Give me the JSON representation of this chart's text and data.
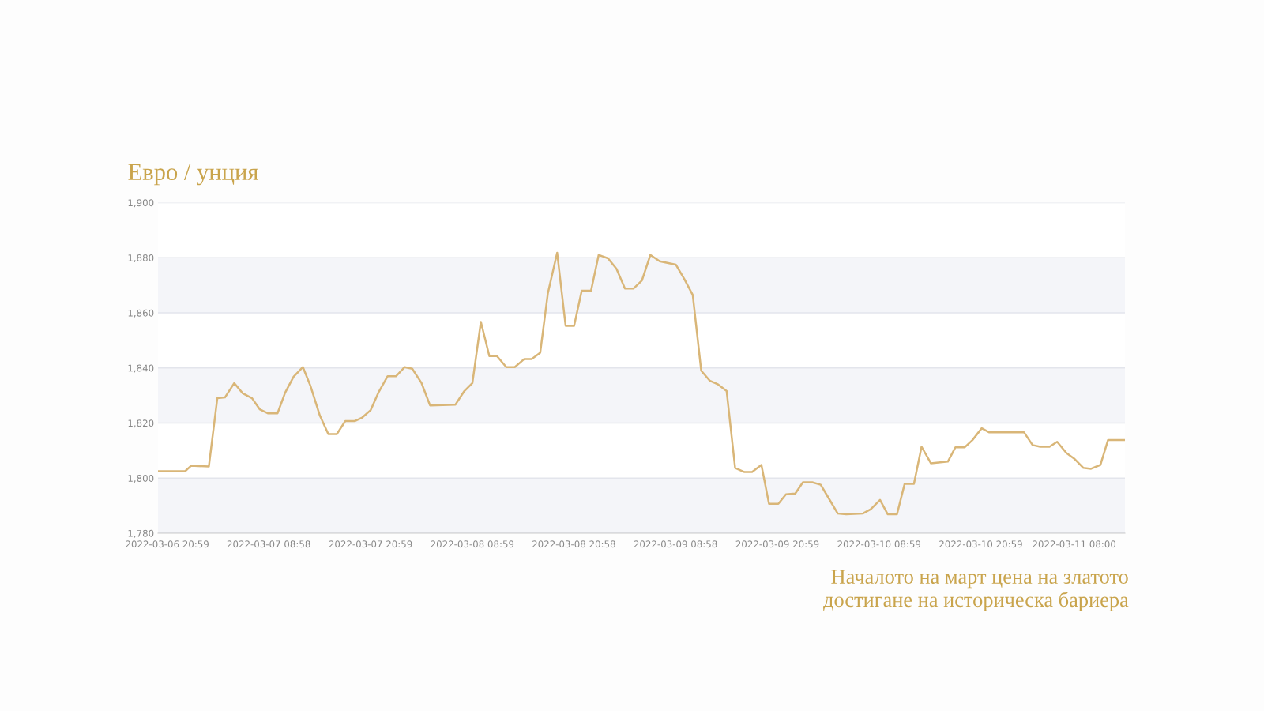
{
  "chart_data": {
    "type": "line",
    "title": "Евро / унция",
    "annotations": [
      "Началото на март цена на златото\nдостигане на историческа бариера"
    ],
    "x": [
      "2022-03-06T19:54",
      "2022-03-06T23:06",
      "2022-03-06T23:48",
      "2022-03-07T01:54",
      "2022-03-07T02:54",
      "2022-03-07T03:48",
      "2022-03-07T04:54",
      "2022-03-07T05:54",
      "2022-03-07T07:00",
      "2022-03-07T07:54",
      "2022-03-07T08:54",
      "2022-03-07T10:00",
      "2022-03-07T10:54",
      "2022-03-07T11:54",
      "2022-03-07T13:00",
      "2022-03-07T13:54",
      "2022-03-07T15:00",
      "2022-03-07T16:00",
      "2022-03-07T17:00",
      "2022-03-07T18:00",
      "2022-03-07T19:06",
      "2022-03-07T20:00",
      "2022-03-07T21:00",
      "2022-03-07T21:54",
      "2022-03-07T23:00",
      "2022-03-08T00:00",
      "2022-03-08T01:00",
      "2022-03-08T01:54",
      "2022-03-08T03:00",
      "2022-03-08T04:00",
      "2022-03-08T07:00",
      "2022-03-08T08:00",
      "2022-03-08T09:00",
      "2022-03-08T10:00",
      "2022-03-08T11:00",
      "2022-03-08T11:54",
      "2022-03-08T13:00",
      "2022-03-08T14:00",
      "2022-03-08T15:06",
      "2022-03-08T16:00",
      "2022-03-08T17:00",
      "2022-03-08T17:54",
      "2022-03-08T19:00",
      "2022-03-08T20:00",
      "2022-03-08T21:00",
      "2022-03-08T21:54",
      "2022-03-08T23:00",
      "2022-03-08T23:54",
      "2022-03-09T01:00",
      "2022-03-09T02:00",
      "2022-03-09T03:00",
      "2022-03-09T04:00",
      "2022-03-09T05:00",
      "2022-03-09T06:00",
      "2022-03-09T07:06",
      "2022-03-09T09:00",
      "2022-03-09T10:00",
      "2022-03-09T11:00",
      "2022-03-09T12:00",
      "2022-03-09T13:00",
      "2022-03-09T14:00",
      "2022-03-09T15:00",
      "2022-03-09T16:00",
      "2022-03-09T17:06",
      "2022-03-09T18:00",
      "2022-03-09T19:06",
      "2022-03-09T20:00",
      "2022-03-09T21:06",
      "2022-03-09T22:00",
      "2022-03-09T23:06",
      "2022-03-10T00:00",
      "2022-03-10T01:06",
      "2022-03-10T02:06",
      "2022-03-10T03:06",
      "2022-03-10T04:06",
      "2022-03-10T05:06",
      "2022-03-10T07:06",
      "2022-03-10T08:00",
      "2022-03-10T09:06",
      "2022-03-10T10:00",
      "2022-03-10T11:06",
      "2022-03-10T12:00",
      "2022-03-10T13:06",
      "2022-03-10T14:00",
      "2022-03-10T15:06",
      "2022-03-10T17:06",
      "2022-03-10T18:00",
      "2022-03-10T19:06",
      "2022-03-10T20:00",
      "2022-03-10T21:06",
      "2022-03-10T22:00",
      "2022-03-11T02:06",
      "2022-03-11T03:06",
      "2022-03-11T04:00",
      "2022-03-11T05:06",
      "2022-03-11T06:00",
      "2022-03-11T07:06",
      "2022-03-11T08:00",
      "2022-03-11T09:06",
      "2022-03-11T10:00",
      "2022-03-11T11:06",
      "2022-03-11T12:00",
      "2022-03-11T14:00"
    ],
    "series": [
      {
        "color": "#d9b678",
        "values": [
          1802.5,
          1802.5,
          1804.5,
          1804.2,
          1829,
          1829.3,
          1834.5,
          1830.8,
          1829,
          1825,
          1823.5,
          1823.5,
          1831,
          1836.8,
          1840.3,
          1833.4,
          1822.7,
          1816,
          1816,
          1820.7,
          1820.7,
          1822,
          1824.7,
          1831,
          1837,
          1837,
          1840.3,
          1839.7,
          1834.5,
          1826.4,
          1826.7,
          1831.4,
          1834.5,
          1856.7,
          1844.3,
          1844.3,
          1840.3,
          1840.3,
          1843.2,
          1843.2,
          1845.5,
          1867,
          1881.8,
          1855.3,
          1855.3,
          1868,
          1868,
          1881,
          1879.8,
          1876,
          1868.8,
          1868.8,
          1871.7,
          1881,
          1878.7,
          1877.5,
          1872.3,
          1866.5,
          1839,
          1835.4,
          1834,
          1831.6,
          1803.7,
          1802.2,
          1802.2,
          1804.8,
          1790.7,
          1790.7,
          1794.1,
          1794.4,
          1798.5,
          1798.5,
          1797.6,
          1792.4,
          1787.2,
          1786.9,
          1787.2,
          1788.7,
          1792.1,
          1786.9,
          1786.9,
          1797.9,
          1797.9,
          1811.4,
          1805.4,
          1806,
          1811.2,
          1811.2,
          1813.8,
          1818.1,
          1816.6,
          1816.6,
          1812,
          1811.4,
          1811.4,
          1813.2,
          1809.1,
          1807.1,
          1803.7,
          1803.4,
          1804.8,
          1813.8,
          1813.8
        ]
      }
    ],
    "xlim": [
      "2022-03-06T19:54",
      "2022-03-11T14:00"
    ],
    "xticks": [
      {
        "value": "2022-03-06T20:59",
        "label": "2022-03-06 20:59"
      },
      {
        "value": "2022-03-07T08:58",
        "label": "2022-03-07 08:58"
      },
      {
        "value": "2022-03-07T20:59",
        "label": "2022-03-07 20:59"
      },
      {
        "value": "2022-03-08T08:59",
        "label": "2022-03-08 08:59"
      },
      {
        "value": "2022-03-08T20:58",
        "label": "2022-03-08 20:58"
      },
      {
        "value": "2022-03-09T08:58",
        "label": "2022-03-09 08:58"
      },
      {
        "value": "2022-03-09T20:59",
        "label": "2022-03-09 20:59"
      },
      {
        "value": "2022-03-10T08:59",
        "label": "2022-03-10 08:59"
      },
      {
        "value": "2022-03-10T20:59",
        "label": "2022-03-10 20:59"
      },
      {
        "value": "2022-03-11T08:00",
        "label": "2022-03-11 08:00"
      }
    ],
    "ylim": [
      1780,
      1900
    ],
    "yticks": [
      {
        "value": 1780,
        "label": "1,780"
      },
      {
        "value": 1800,
        "label": "1,800"
      },
      {
        "value": 1820,
        "label": "1,820"
      },
      {
        "value": 1840,
        "label": "1,840"
      },
      {
        "value": 1860,
        "label": "1,860"
      },
      {
        "value": 1880,
        "label": "1,880"
      },
      {
        "value": 1900,
        "label": "1,900"
      }
    ],
    "bands": [
      {
        "axis": "y",
        "from": 1780,
        "to": 1800,
        "color": "#f4f5f9"
      },
      {
        "axis": "y",
        "from": 1820,
        "to": 1840,
        "color": "#f4f5f9"
      },
      {
        "axis": "y",
        "from": 1860,
        "to": 1880,
        "color": "#f4f5f9"
      }
    ],
    "grid": "y",
    "marker": "none",
    "line_style": "solid",
    "legend": false
  }
}
